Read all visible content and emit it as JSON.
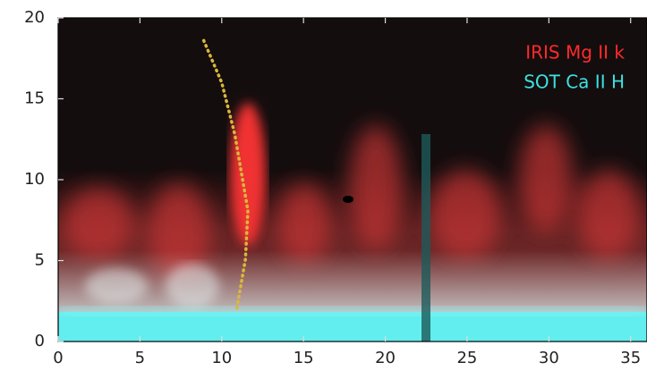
{
  "chart_data": {
    "type": "image",
    "xlim": [
      0,
      36
    ],
    "ylim": [
      0,
      20
    ],
    "xticks": [
      0,
      5,
      10,
      15,
      20,
      25,
      30,
      35
    ],
    "yticks": [
      0,
      5,
      10,
      15,
      20
    ],
    "legend": [
      {
        "name": "IRIS Mg II k",
        "color": "#ff2a2a"
      },
      {
        "name": "SOT Ca II H",
        "color": "#3fe0e0"
      }
    ],
    "trajectory": {
      "x": [
        8.9,
        10.0,
        10.8,
        11.6,
        11.45,
        10.9
      ],
      "y": [
        18.6,
        16.0,
        12.8,
        8.1,
        5.1,
        1.9
      ],
      "color": "#d9b83a"
    }
  }
}
